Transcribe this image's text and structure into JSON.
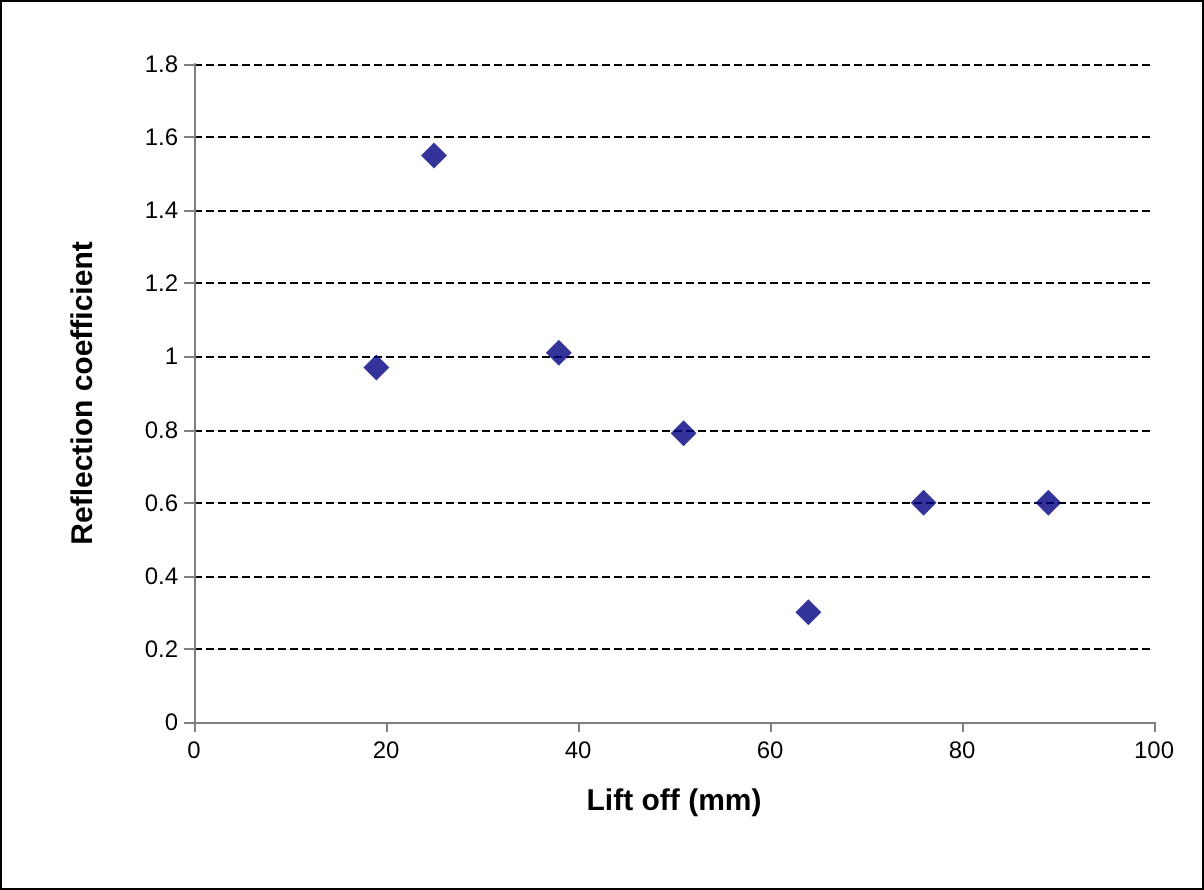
{
  "chart_data": {
    "type": "scatter",
    "xlabel": "Lift off (mm)",
    "ylabel": "Reflection coefficient",
    "x": [
      19,
      25,
      38,
      51,
      64,
      76,
      89
    ],
    "series": [
      {
        "color": "#000080",
        "values": [
          0.97,
          1.55,
          1.01,
          0.79,
          0.3,
          0.6,
          0.6
        ]
      }
    ],
    "xlim": [
      0,
      100
    ],
    "xticks": [
      0,
      20,
      40,
      60,
      80,
      100
    ],
    "ylim": [
      0,
      1.8
    ],
    "yticks": [
      0,
      0.2,
      0.4,
      0.6,
      0.8,
      1,
      1.2,
      1.4,
      1.6,
      1.8
    ],
    "grid": "y",
    "marker": "diamond"
  }
}
